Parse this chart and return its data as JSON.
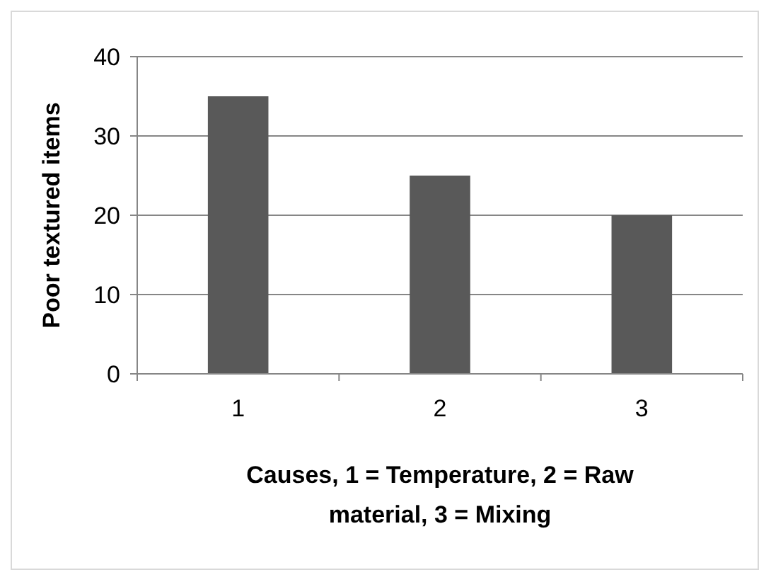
{
  "chart_data": {
    "type": "bar",
    "xlabel": "Causes, 1 = Temperature, 2 = Raw material, 3 = Mixing",
    "ylabel": "Poor textured items",
    "categories": [
      "1",
      "2",
      "3"
    ],
    "values": [
      35,
      25,
      20
    ],
    "color": "#595959",
    "ylim": [
      0,
      40
    ],
    "yticks": [
      0,
      10,
      20,
      30,
      40
    ],
    "grid": "y"
  }
}
